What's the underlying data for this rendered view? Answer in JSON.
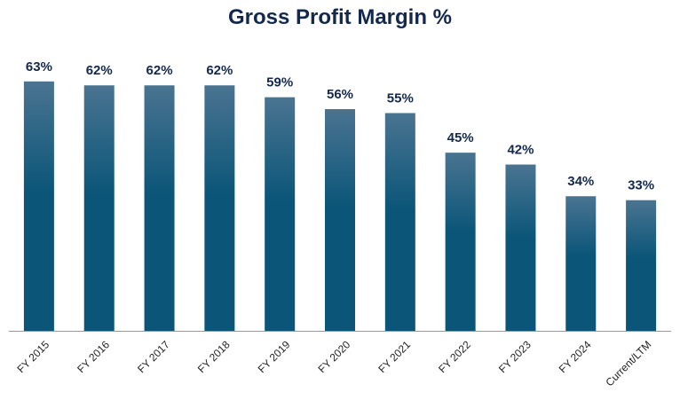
{
  "chart_data": {
    "type": "bar",
    "title": "Gross Profit Margin %",
    "xlabel": "",
    "ylabel": "",
    "categories": [
      "FY 2015",
      "FY 2016",
      "FY 2017",
      "FY 2018",
      "FY 2019",
      "FY 2020",
      "FY 2021",
      "FY 2022",
      "FY 2023",
      "FY 2024",
      "Current/LTM"
    ],
    "values": [
      63,
      62,
      62,
      62,
      59,
      56,
      55,
      45,
      42,
      34,
      33
    ],
    "data_labels": [
      "63%",
      "62%",
      "62%",
      "62%",
      "59%",
      "56%",
      "55%",
      "45%",
      "42%",
      "34%",
      "33%"
    ],
    "ylim": [
      0,
      69
    ],
    "grid": false,
    "legend": "none",
    "colors": {
      "bar_top": "#4a7491",
      "bar_bottom": "#0a5578",
      "title": "#13294b",
      "axis": "#999999"
    }
  }
}
